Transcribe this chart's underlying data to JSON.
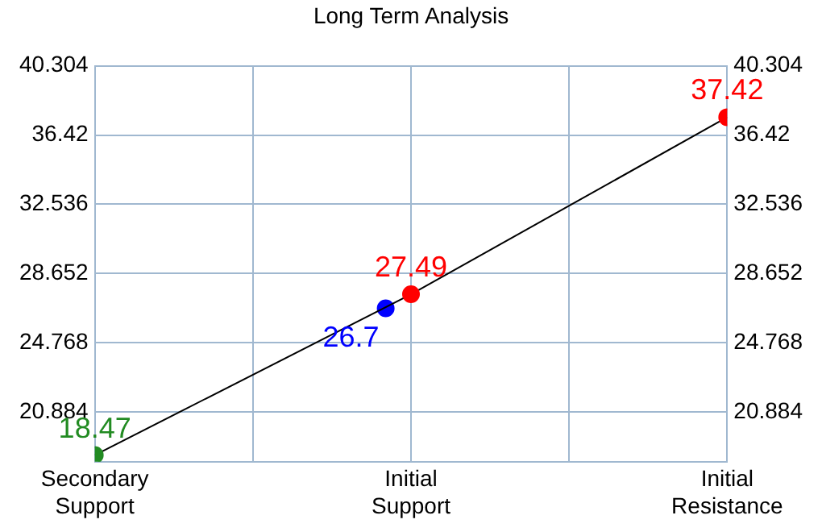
{
  "chart_data": {
    "type": "line",
    "title": "Long Term Analysis",
    "categories": [
      "Secondary Support",
      "Initial Support",
      "Initial Resistance"
    ],
    "series": [
      {
        "color": "#000000",
        "colors": [
          "#228b22",
          "#ff0000",
          "#ff0000"
        ],
        "values": [
          18.47,
          27.49,
          37.42
        ]
      },
      {
        "type": "scatter",
        "x": [
          "Initial Support"
        ],
        "color": "#0000ff",
        "values": [
          26.7
        ]
      }
    ],
    "ylim": [
      18.1,
      40.304
    ],
    "yticks": [
      20.884,
      24.768,
      28.652,
      32.536,
      36.42,
      40.304
    ],
    "y2lim": [
      18.1,
      40.304
    ],
    "y2ticks": [
      20.884,
      24.768,
      28.652,
      32.536,
      36.42,
      40.304
    ],
    "grid": true,
    "marker": "circle",
    "data_labels": true
  }
}
